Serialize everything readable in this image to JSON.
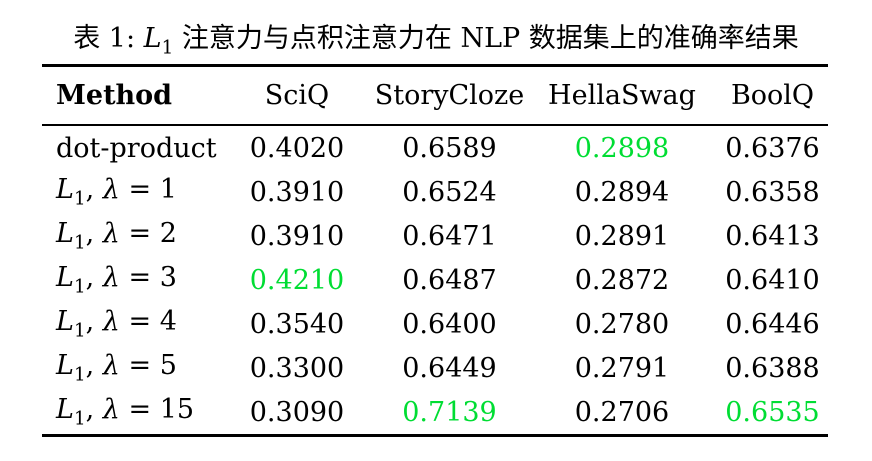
{
  "caption": {
    "label": "表 1: ",
    "math_var": "L",
    "math_sub": "1",
    "text": " 注意力与点积注意力在 NLP 数据集上的准确率结果"
  },
  "table": {
    "columns": [
      "Method",
      "SciQ",
      "StoryCloze",
      "HellaSwag",
      "BoolQ"
    ],
    "rows": [
      {
        "method": {
          "text": "dot-product"
        },
        "values": [
          "0.4020",
          "0.6589",
          "0.2898",
          "0.6376"
        ],
        "green": [
          false,
          false,
          true,
          false
        ]
      },
      {
        "method": {
          "l": "L",
          "sub": "1",
          "pre": ", ",
          "lam": "λ",
          "post": " = 1"
        },
        "values": [
          "0.3910",
          "0.6524",
          "0.2894",
          "0.6358"
        ],
        "green": [
          false,
          false,
          false,
          false
        ]
      },
      {
        "method": {
          "l": "L",
          "sub": "1",
          "pre": ", ",
          "lam": "λ",
          "post": " = 2"
        },
        "values": [
          "0.3910",
          "0.6471",
          "0.2891",
          "0.6413"
        ],
        "green": [
          false,
          false,
          false,
          false
        ]
      },
      {
        "method": {
          "l": "L",
          "sub": "1",
          "pre": ", ",
          "lam": "λ",
          "post": " = 3"
        },
        "values": [
          "0.4210",
          "0.6487",
          "0.2872",
          "0.6410"
        ],
        "green": [
          true,
          false,
          false,
          false
        ]
      },
      {
        "method": {
          "l": "L",
          "sub": "1",
          "pre": ", ",
          "lam": "λ",
          "post": " = 4"
        },
        "values": [
          "0.3540",
          "0.6400",
          "0.2780",
          "0.6446"
        ],
        "green": [
          false,
          false,
          false,
          false
        ]
      },
      {
        "method": {
          "l": "L",
          "sub": "1",
          "pre": ", ",
          "lam": "λ",
          "post": " = 5"
        },
        "values": [
          "0.3300",
          "0.6449",
          "0.2791",
          "0.6388"
        ],
        "green": [
          false,
          false,
          false,
          false
        ]
      },
      {
        "method": {
          "l": "L",
          "sub": "1",
          "pre": ", ",
          "lam": "λ",
          "post": " = 15"
        },
        "values": [
          "0.3090",
          "0.7139",
          "0.2706",
          "0.6535"
        ],
        "green": [
          false,
          true,
          false,
          true
        ]
      }
    ]
  },
  "colors": {
    "highlight_green": "#00dd33",
    "text": "#000000",
    "background": "#ffffff"
  }
}
